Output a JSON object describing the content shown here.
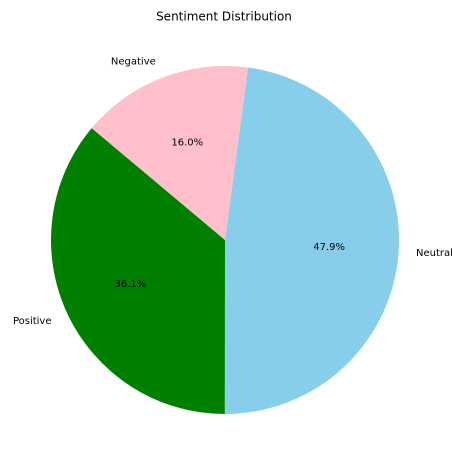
{
  "chart_data": {
    "type": "pie",
    "title": "Sentiment Distribution",
    "slices": [
      {
        "label": "Positive",
        "value": 36.1,
        "pct_label": "36.1%",
        "color": "#008000"
      },
      {
        "label": "Neutral",
        "value": 47.9,
        "pct_label": "47.9%",
        "color": "#87CEEB"
      },
      {
        "label": "Negative",
        "value": 16.0,
        "pct_label": "16.0%",
        "color": "#FFC0CB"
      }
    ],
    "start_angle_deg": 140,
    "direction": "counterclockwise"
  }
}
